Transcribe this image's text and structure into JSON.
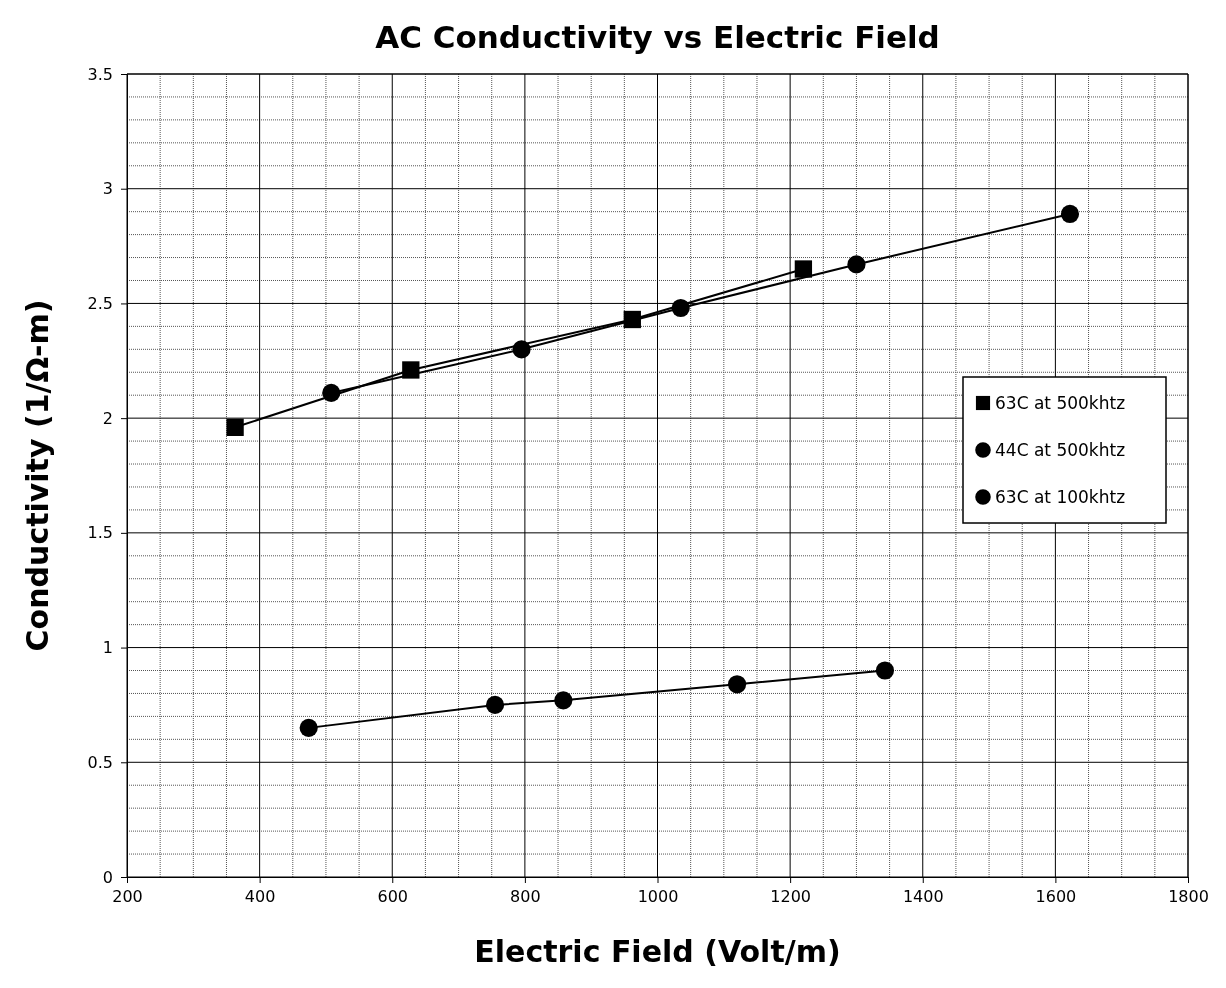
{
  "chart_data": {
    "type": "line",
    "title": "AC Conductivity vs Electric Field",
    "xlabel": "Electric Field (Volt/m)",
    "ylabel": "Conductivity (1/Ω-m)",
    "xlim": [
      200,
      1800
    ],
    "xticks": [
      200,
      400,
      600,
      800,
      1000,
      1200,
      1400,
      1600,
      1800
    ],
    "ylim": [
      0,
      3.5
    ],
    "yticks": [
      0,
      0.5,
      1,
      1.5,
      2,
      2.5,
      3,
      3.5
    ],
    "grid": true,
    "legend": "right",
    "line_style": "solid",
    "series": [
      {
        "name": "63C at 500khtz",
        "color": "#000000",
        "marker": "square",
        "x": [
          363,
          628,
          962,
          1220
        ],
        "values": [
          1.96,
          2.21,
          2.43,
          2.65
        ]
      },
      {
        "name": "44C at 500khtz",
        "color": "#000000",
        "marker": "circle",
        "x": [
          508,
          795,
          1035,
          1300,
          1622
        ],
        "values": [
          2.11,
          2.3,
          2.48,
          2.67,
          2.89
        ]
      },
      {
        "name": "63C at 100khtz",
        "color": "#000000",
        "marker": "circle",
        "x": [
          474,
          755,
          858,
          1120,
          1343
        ],
        "values": [
          0.65,
          0.75,
          0.77,
          0.84,
          0.9
        ]
      }
    ]
  }
}
